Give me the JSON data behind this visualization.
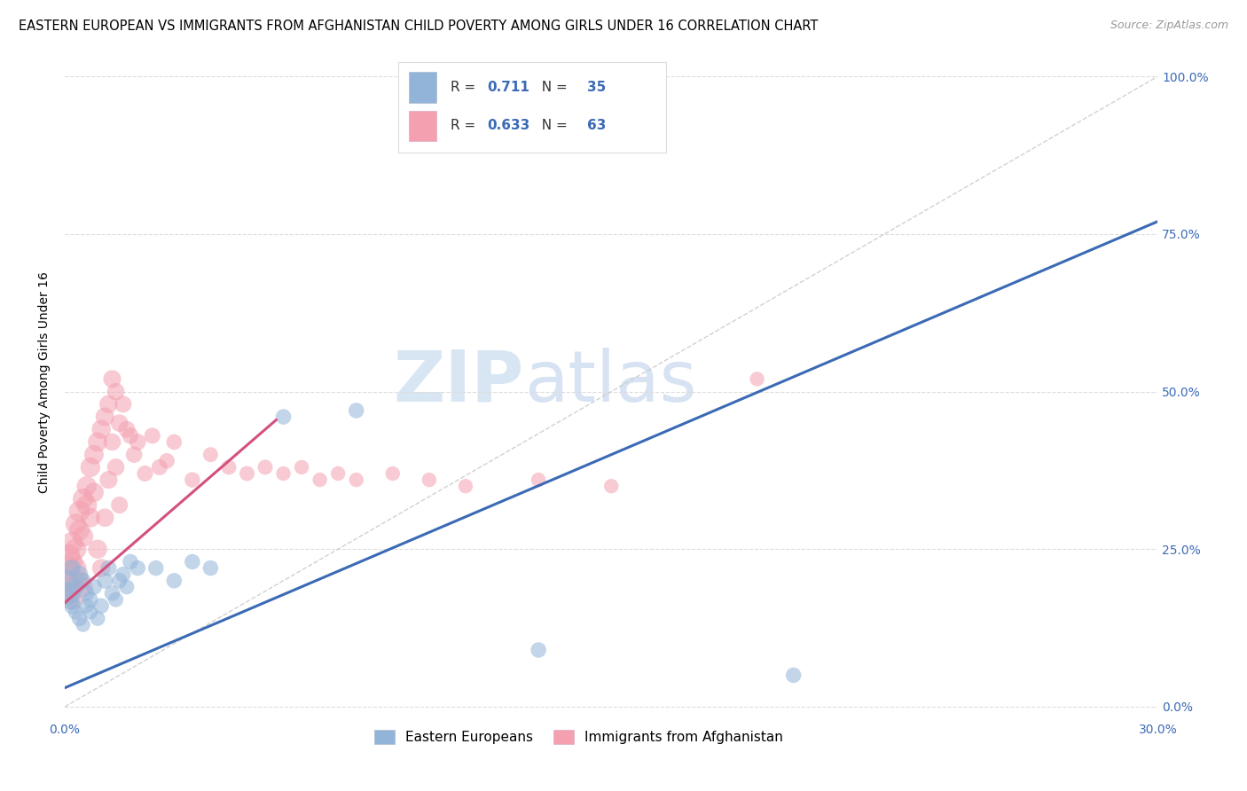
{
  "title": "EASTERN EUROPEAN VS IMMIGRANTS FROM AFGHANISTAN CHILD POVERTY AMONG GIRLS UNDER 16 CORRELATION CHART",
  "source": "Source: ZipAtlas.com",
  "ylabel": "Child Poverty Among Girls Under 16",
  "right_yticklabels": [
    "0.0%",
    "25.0%",
    "50.0%",
    "75.0%",
    "100.0%"
  ],
  "xlim": [
    0.0,
    0.3
  ],
  "ylim": [
    -0.02,
    1.05
  ],
  "blue_label": "Eastern Europeans",
  "pink_label": "Immigrants from Afghanistan",
  "blue_R": "0.711",
  "blue_N": "35",
  "pink_R": "0.633",
  "pink_N": "63",
  "blue_color": "#92B4D8",
  "pink_color": "#F4A0B0",
  "blue_line_color": "#3B6AB5",
  "pink_line_color": "#D45080",
  "diag_color": "#CCCCCC",
  "background_color": "#FFFFFF",
  "watermark_zip": "ZIP",
  "watermark_atlas": "atlas",
  "grid_color": "#DDDDDD",
  "title_fontsize": 10.5,
  "axis_label_fontsize": 10,
  "tick_fontsize": 10,
  "legend_fontsize": 11,
  "blue_scatter_x": [
    0.0005,
    0.001,
    0.0015,
    0.002,
    0.002,
    0.003,
    0.003,
    0.004,
    0.004,
    0.005,
    0.005,
    0.006,
    0.006,
    0.007,
    0.007,
    0.008,
    0.009,
    0.01,
    0.011,
    0.012,
    0.013,
    0.014,
    0.015,
    0.016,
    0.017,
    0.018,
    0.02,
    0.025,
    0.03,
    0.035,
    0.04,
    0.06,
    0.08,
    0.13,
    0.2
  ],
  "blue_scatter_y": [
    0.2,
    0.18,
    0.17,
    0.16,
    0.22,
    0.15,
    0.19,
    0.14,
    0.21,
    0.13,
    0.2,
    0.18,
    0.16,
    0.15,
    0.17,
    0.19,
    0.14,
    0.16,
    0.2,
    0.22,
    0.18,
    0.17,
    0.2,
    0.21,
    0.19,
    0.23,
    0.22,
    0.22,
    0.2,
    0.23,
    0.22,
    0.46,
    0.47,
    0.09,
    0.05
  ],
  "blue_scatter_sizes": [
    300,
    350,
    250,
    180,
    200,
    150,
    180,
    160,
    200,
    140,
    170,
    160,
    150,
    140,
    160,
    170,
    150,
    160,
    170,
    170,
    160,
    150,
    160,
    160,
    150,
    160,
    160,
    160,
    160,
    160,
    160,
    160,
    160,
    160,
    160
  ],
  "pink_scatter_x": [
    0.0005,
    0.001,
    0.001,
    0.001,
    0.0015,
    0.002,
    0.002,
    0.002,
    0.003,
    0.003,
    0.003,
    0.004,
    0.004,
    0.004,
    0.005,
    0.005,
    0.005,
    0.006,
    0.006,
    0.007,
    0.007,
    0.008,
    0.008,
    0.009,
    0.009,
    0.01,
    0.01,
    0.011,
    0.011,
    0.012,
    0.012,
    0.013,
    0.013,
    0.014,
    0.014,
    0.015,
    0.015,
    0.016,
    0.017,
    0.018,
    0.019,
    0.02,
    0.022,
    0.024,
    0.026,
    0.028,
    0.03,
    0.035,
    0.04,
    0.045,
    0.05,
    0.055,
    0.06,
    0.065,
    0.07,
    0.075,
    0.08,
    0.09,
    0.1,
    0.11,
    0.13,
    0.15,
    0.19
  ],
  "pink_scatter_y": [
    0.22,
    0.2,
    0.18,
    0.24,
    0.19,
    0.23,
    0.17,
    0.26,
    0.25,
    0.29,
    0.22,
    0.28,
    0.31,
    0.2,
    0.27,
    0.33,
    0.19,
    0.32,
    0.35,
    0.38,
    0.3,
    0.4,
    0.34,
    0.42,
    0.25,
    0.44,
    0.22,
    0.46,
    0.3,
    0.48,
    0.36,
    0.52,
    0.42,
    0.5,
    0.38,
    0.45,
    0.32,
    0.48,
    0.44,
    0.43,
    0.4,
    0.42,
    0.37,
    0.43,
    0.38,
    0.39,
    0.42,
    0.36,
    0.4,
    0.38,
    0.37,
    0.38,
    0.37,
    0.38,
    0.36,
    0.37,
    0.36,
    0.37,
    0.36,
    0.35,
    0.36,
    0.35,
    0.52
  ],
  "pink_scatter_sizes": [
    400,
    350,
    300,
    350,
    280,
    300,
    280,
    320,
    300,
    280,
    300,
    280,
    300,
    260,
    280,
    280,
    260,
    280,
    260,
    260,
    250,
    250,
    250,
    250,
    240,
    240,
    220,
    230,
    220,
    220,
    210,
    210,
    200,
    200,
    200,
    200,
    190,
    190,
    190,
    180,
    180,
    180,
    170,
    170,
    170,
    160,
    160,
    160,
    150,
    150,
    150,
    150,
    140,
    140,
    140,
    140,
    140,
    140,
    140,
    140,
    140,
    140,
    140
  ],
  "blue_line_x": [
    0.0,
    0.3
  ],
  "blue_line_y": [
    0.03,
    0.77
  ],
  "pink_line_x": [
    -0.002,
    0.058
  ],
  "pink_line_y": [
    0.155,
    0.455
  ],
  "diag_line_x": [
    0.0,
    0.3
  ],
  "diag_line_y": [
    0.0,
    1.0
  ]
}
